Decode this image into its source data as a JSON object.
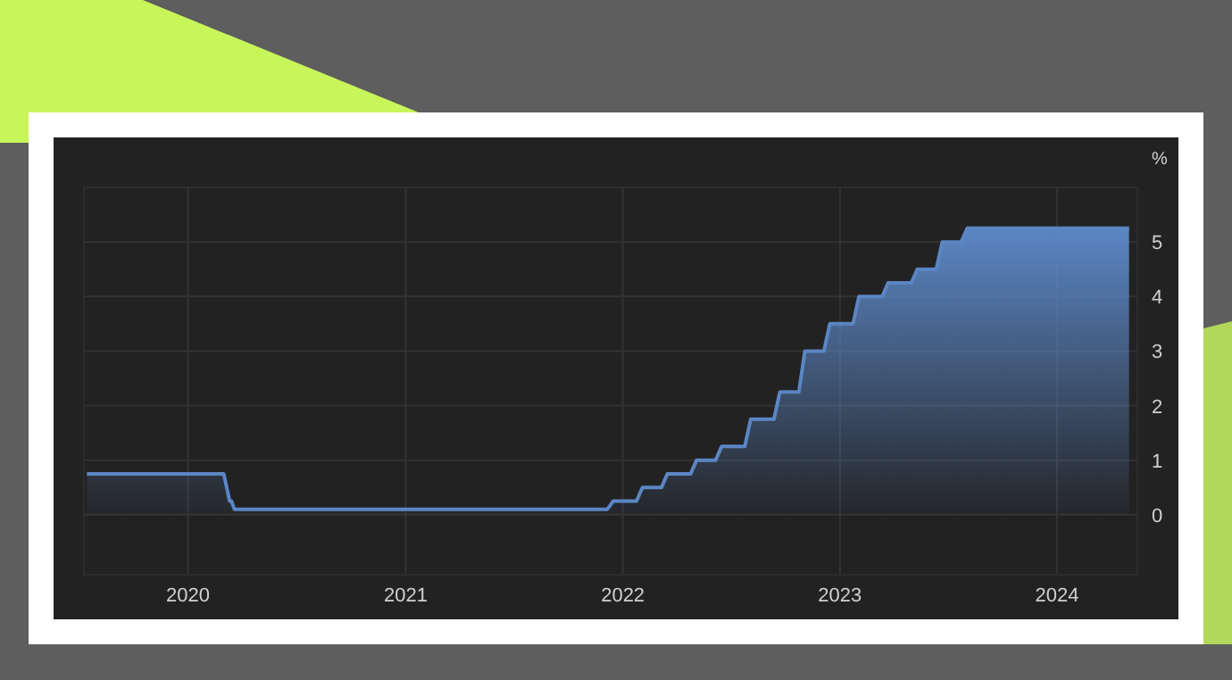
{
  "chart_data": {
    "type": "area",
    "ylabel": "%",
    "x": [
      "2019-07-15",
      "2020-03-01",
      "2020-03-11",
      "2020-03-14",
      "2020-03-19",
      "2021-12-06",
      "2021-12-16",
      "2022-01-24",
      "2022-02-03",
      "2022-03-07",
      "2022-03-17",
      "2022-04-25",
      "2022-05-05",
      "2022-06-06",
      "2022-06-16",
      "2022-07-25",
      "2022-08-04",
      "2022-09-12",
      "2022-09-22",
      "2022-10-24",
      "2022-11-03",
      "2022-12-05",
      "2022-12-15",
      "2023-01-23",
      "2023-02-02",
      "2023-03-13",
      "2023-03-23",
      "2023-05-01",
      "2023-05-11",
      "2023-06-12",
      "2023-06-22",
      "2023-07-24",
      "2023-08-03",
      "2024-05-01"
    ],
    "series": [
      {
        "color": "#5b86c4",
        "values": [
          0.75,
          0.75,
          0.25,
          0.25,
          0.1,
          0.1,
          0.25,
          0.25,
          0.5,
          0.5,
          0.75,
          0.75,
          1,
          1,
          1.25,
          1.25,
          1.75,
          1.75,
          2.25,
          2.25,
          3,
          3,
          3.5,
          3.5,
          4,
          4,
          4.25,
          4.25,
          4.5,
          4.5,
          5,
          5,
          5.25,
          5.25
        ]
      }
    ],
    "xlim": [
      "2019-07-10",
      "2024-05-15"
    ],
    "xticks": [
      {
        "value": "2020-01-01",
        "label": "2020"
      },
      {
        "value": "2021-01-01",
        "label": "2021"
      },
      {
        "value": "2022-01-01",
        "label": "2022"
      },
      {
        "value": "2023-01-01",
        "label": "2023"
      },
      {
        "value": "2024-01-01",
        "label": "2024"
      }
    ],
    "ylim": [
      -1.1,
      6
    ],
    "yticks": [
      0,
      1,
      2,
      3,
      4,
      5
    ],
    "grid": true,
    "line_style": "solid"
  }
}
